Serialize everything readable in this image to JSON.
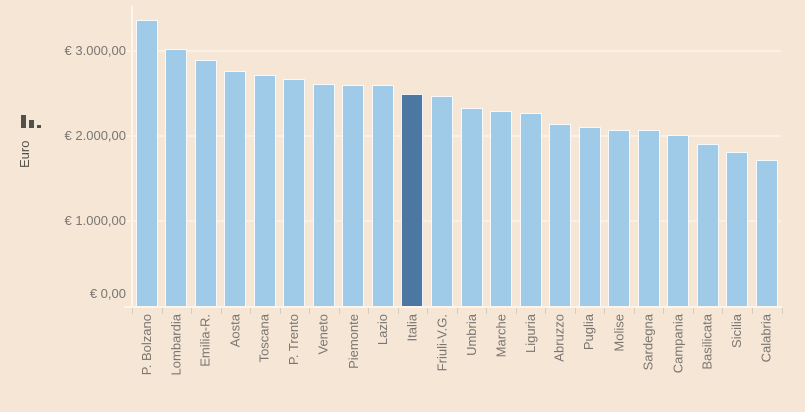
{
  "chart_data": {
    "type": "bar",
    "title": "",
    "xlabel": "",
    "ylabel": "Euro",
    "categories": [
      "P. Bolzano",
      "Lombardia",
      "Emilia-R.",
      "Aosta",
      "Toscana",
      "P. Trento",
      "Veneto",
      "Piemonte",
      "Lazio",
      "Italia",
      "Friuli-V.G.",
      "Umbria",
      "Marche",
      "Liguria",
      "Abruzzo",
      "Puglia",
      "Molise",
      "Sardegna",
      "Campania",
      "Basilicata",
      "Sicilia",
      "Calabria"
    ],
    "values": [
      3370,
      3020,
      2890,
      2770,
      2720,
      2670,
      2610,
      2600,
      2600,
      2490,
      2475,
      2330,
      2290,
      2265,
      2140,
      2105,
      2070,
      2065,
      2010,
      1910,
      1810,
      1715
    ],
    "highlight_category": "Italia",
    "ylim": [
      0,
      3500
    ],
    "grid": true,
    "legend_position": "none",
    "y_ticks": [
      {
        "value": 0,
        "label": "€ 0,00"
      },
      {
        "value": 1000,
        "label": "€ 1.000,00"
      },
      {
        "value": 2000,
        "label": "€ 2.000,00"
      },
      {
        "value": 3000,
        "label": "€ 3.000,00"
      }
    ],
    "colors": {
      "bar": "#a0cbe8",
      "highlight_bar": "#4d77a3",
      "background": "#f5e6d6",
      "tick_text": "#7b7671",
      "axis_title_text": "#55514d",
      "gridline": "#faf0e4"
    }
  },
  "icons": {
    "y_axis_sort": "mini-bar-chart-descending"
  }
}
